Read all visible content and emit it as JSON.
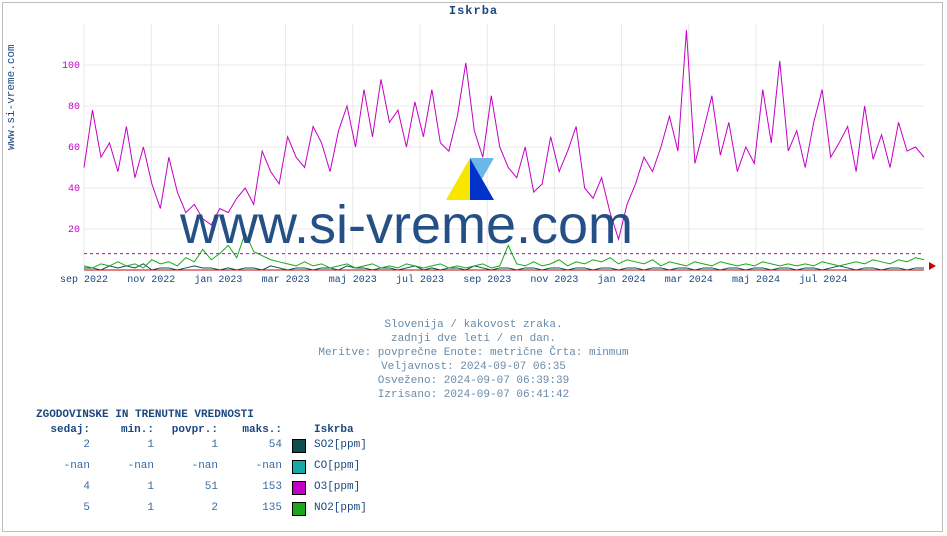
{
  "title": "Iskrba",
  "ylabel": "www.si-vreme.com",
  "watermark": "www.si-vreme.com",
  "chart": {
    "type": "line",
    "ylim": [
      0,
      120
    ],
    "yticks": [
      20,
      40,
      60,
      80,
      100
    ],
    "background_color": "#ffffff",
    "grid_color": "#e8e8e8",
    "baseline_color": "#cc0000",
    "ref_line_value": 8,
    "ref_line_color": "#c400c4",
    "xticks": [
      "sep 2022",
      "nov 2022",
      "jan 2023",
      "mar 2023",
      "maj 2023",
      "jul 2023",
      "sep 2023",
      "nov 2023",
      "jan 2024",
      "mar 2024",
      "maj 2024",
      "jul 2024"
    ],
    "series": {
      "SO2": {
        "color": "#0d4f4f",
        "values": [
          1,
          1,
          0,
          2,
          1,
          2,
          1,
          3,
          0,
          1,
          1,
          0,
          1,
          2,
          1,
          1,
          0,
          1,
          0,
          1,
          1,
          0,
          2,
          1,
          0,
          1,
          1,
          0,
          1,
          1,
          0,
          2,
          1,
          1,
          0,
          1,
          1,
          0,
          1,
          2,
          0,
          1,
          0,
          1,
          1,
          0,
          2,
          1,
          0,
          1,
          1,
          0,
          1,
          1,
          0,
          1,
          1,
          0,
          1,
          1,
          0,
          1,
          1,
          0,
          1,
          1,
          0,
          1,
          1,
          0,
          1,
          1,
          0,
          1,
          1,
          0,
          1,
          1,
          0,
          1,
          1,
          0,
          1,
          1,
          0,
          1,
          1,
          0,
          1,
          2,
          1,
          0,
          1,
          1,
          0,
          1,
          1,
          0,
          1,
          1
        ]
      },
      "CO": {
        "color": "#18a8a8",
        "values": [
          0,
          0,
          0,
          0,
          0,
          0,
          0,
          0,
          0,
          0,
          0,
          0,
          0,
          0,
          0,
          0,
          0,
          0,
          0,
          0,
          0,
          0,
          0,
          0,
          0,
          0,
          0,
          0,
          0,
          0,
          0,
          0,
          0,
          0,
          0,
          0,
          0,
          0,
          0,
          0,
          0,
          0,
          0,
          0,
          0,
          0,
          0,
          0,
          0,
          0,
          0,
          0,
          0,
          0,
          0,
          0,
          0,
          0,
          0,
          0,
          0,
          0,
          0,
          0,
          0,
          0,
          0,
          0,
          0,
          0,
          0,
          0,
          0,
          0,
          0,
          0,
          0,
          0,
          0,
          0,
          0,
          0,
          0,
          0,
          0,
          0,
          0,
          0,
          0,
          0,
          0,
          0,
          0,
          0,
          0,
          0,
          0,
          0,
          0,
          0
        ]
      },
      "O3": {
        "color": "#c400c4",
        "values": [
          50,
          78,
          55,
          62,
          48,
          70,
          45,
          60,
          42,
          30,
          55,
          38,
          28,
          32,
          25,
          22,
          30,
          28,
          35,
          40,
          32,
          58,
          48,
          42,
          65,
          55,
          50,
          70,
          62,
          48,
          68,
          80,
          60,
          88,
          65,
          93,
          72,
          78,
          60,
          82,
          65,
          88,
          62,
          58,
          75,
          101,
          68,
          55,
          85,
          60,
          50,
          45,
          60,
          38,
          42,
          65,
          48,
          58,
          70,
          40,
          35,
          45,
          28,
          15,
          32,
          42,
          55,
          48,
          60,
          75,
          58,
          117,
          52,
          68,
          85,
          56,
          72,
          48,
          60,
          52,
          88,
          62,
          102,
          58,
          68,
          50,
          72,
          88,
          55,
          62,
          70,
          48,
          80,
          54,
          66,
          50,
          72,
          58,
          60,
          55
        ]
      },
      "NO2": {
        "color": "#1aa81a",
        "values": [
          2,
          1,
          3,
          2,
          4,
          2,
          3,
          1,
          5,
          3,
          4,
          2,
          6,
          4,
          10,
          5,
          8,
          12,
          6,
          18,
          9,
          7,
          5,
          4,
          3,
          2,
          4,
          2,
          3,
          1,
          2,
          3,
          1,
          2,
          3,
          1,
          2,
          1,
          3,
          2,
          1,
          2,
          3,
          1,
          2,
          1,
          2,
          3,
          1,
          2,
          12,
          3,
          2,
          4,
          2,
          3,
          5,
          2,
          4,
          3,
          5,
          4,
          6,
          3,
          5,
          4,
          3,
          5,
          2,
          4,
          3,
          2,
          4,
          3,
          2,
          4,
          3,
          2,
          3,
          2,
          4,
          3,
          2,
          3,
          2,
          3,
          2,
          4,
          3,
          2,
          3,
          4,
          3,
          5,
          4,
          3,
          5,
          4,
          6,
          5
        ]
      }
    }
  },
  "metadata": {
    "line1": "Slovenija / kakovost zraka.",
    "line2": "zadnji dve leti / en dan.",
    "line3": "Meritve: povprečne  Enote: metrične  Črta: minmum",
    "line4": "Veljavnost: 2024-09-07 06:35",
    "line5": "Osveženo: 2024-09-07 06:39:39",
    "line6": "Izrisano: 2024-09-07 06:41:42"
  },
  "stats": {
    "header": "ZGODOVINSKE IN TRENUTNE VREDNOSTI",
    "columns": [
      "sedaj:",
      "min.:",
      "povpr.:",
      "maks.:"
    ],
    "location": "Iskrba",
    "rows": [
      {
        "sedaj": "2",
        "min": "1",
        "povpr": "1",
        "maks": "54",
        "swatch": "#0d4f4f",
        "label": "SO2[ppm]"
      },
      {
        "sedaj": "-nan",
        "min": "-nan",
        "povpr": "-nan",
        "maks": "-nan",
        "swatch": "#18a8a8",
        "label": "CO[ppm]"
      },
      {
        "sedaj": "4",
        "min": "1",
        "povpr": "51",
        "maks": "153",
        "swatch": "#c400c4",
        "label": "O3[ppm]"
      },
      {
        "sedaj": "5",
        "min": "1",
        "povpr": "2",
        "maks": "135",
        "swatch": "#1aa81a",
        "label": "NO2[ppm]"
      }
    ]
  },
  "logo": {
    "yellow": "#f7e600",
    "blue": "#0033cc",
    "cyan": "#68b8e8"
  }
}
